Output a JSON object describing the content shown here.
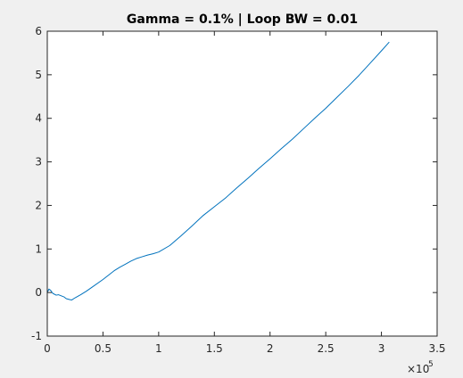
{
  "chart_data": {
    "type": "line",
    "title": "Gamma = 0.1% | Loop BW = 0.01",
    "xlabel": "",
    "ylabel": "",
    "xlim": [
      0,
      350000
    ],
    "ylim": [
      -1,
      6
    ],
    "x_ticks": [
      0,
      50000,
      100000,
      150000,
      200000,
      250000,
      300000,
      350000
    ],
    "x_tick_labels": [
      "0",
      "0.5",
      "1",
      "1.5",
      "2",
      "2.5",
      "3",
      "3.5"
    ],
    "y_ticks": [
      -1,
      0,
      1,
      2,
      3,
      4,
      5,
      6
    ],
    "y_tick_labels": [
      "-1",
      "0",
      "1",
      "2",
      "3",
      "4",
      "5",
      "6"
    ],
    "x_exponent_base": "×10",
    "x_exponent_power": "5",
    "grid": false,
    "legend": "none",
    "line_color": "#0072bd",
    "series": [
      {
        "x": [
          0,
          1500,
          3000,
          5000,
          8000,
          10000,
          13000,
          15000,
          17000,
          20000,
          22000,
          25000,
          30000,
          35000,
          40000,
          50000,
          55000,
          60000,
          65000,
          70000,
          75000,
          80000,
          85000,
          90000,
          95000,
          100000,
          110000,
          120000,
          130000,
          140000,
          150000,
          160000,
          170000,
          180000,
          190000,
          200000,
          210000,
          220000,
          230000,
          240000,
          250000,
          260000,
          270000,
          280000,
          290000,
          300000,
          307000
        ],
        "y": [
          0,
          0.08,
          0.05,
          -0.02,
          -0.06,
          -0.05,
          -0.08,
          -0.1,
          -0.14,
          -0.16,
          -0.17,
          -0.12,
          -0.05,
          0.03,
          0.12,
          0.3,
          0.4,
          0.5,
          0.58,
          0.65,
          0.72,
          0.78,
          0.82,
          0.86,
          0.89,
          0.93,
          1.08,
          1.3,
          1.53,
          1.77,
          1.97,
          2.17,
          2.4,
          2.62,
          2.85,
          3.07,
          3.3,
          3.52,
          3.76,
          4.0,
          4.23,
          4.48,
          4.73,
          4.99,
          5.27,
          5.55,
          5.75
        ]
      }
    ]
  }
}
